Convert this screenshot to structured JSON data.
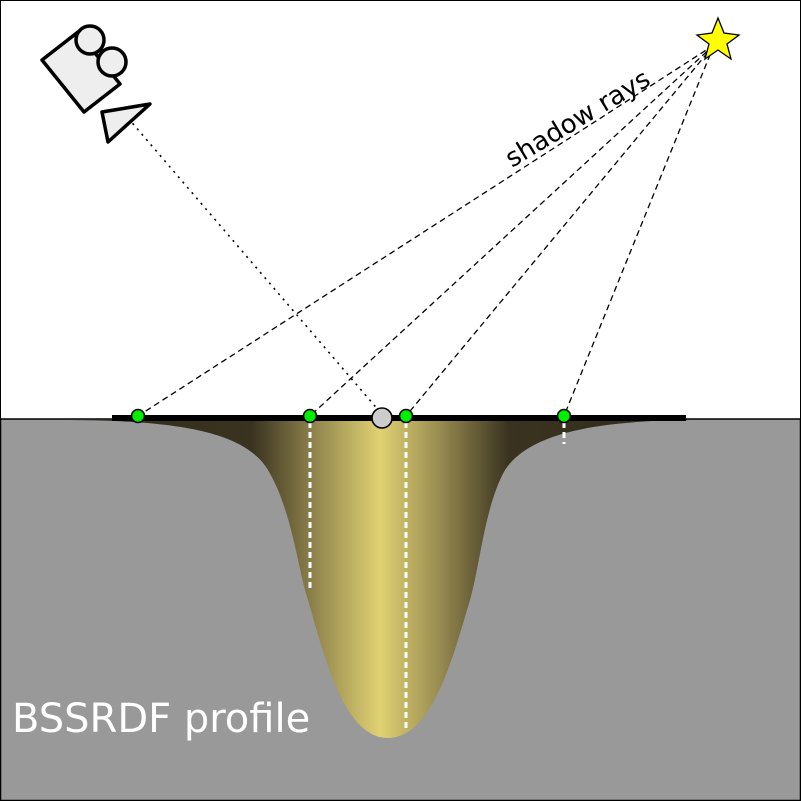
{
  "labels": {
    "shadow_rays": "shadow rays",
    "profile": "BSSRDF profile"
  },
  "colors": {
    "background": "#ffffff",
    "medium": "#999999",
    "surface": "#000000",
    "profile_center": "#e0d272",
    "profile_edge": "#3a3320",
    "sample_point": "#00ee00",
    "shading_point": "#cccccc",
    "light": "#ffff00",
    "camera": "#eeeeee",
    "ray": "#000000",
    "probe": "#ffffff"
  },
  "icons": {
    "camera": "video-camera-icon",
    "light": "star-icon"
  }
}
